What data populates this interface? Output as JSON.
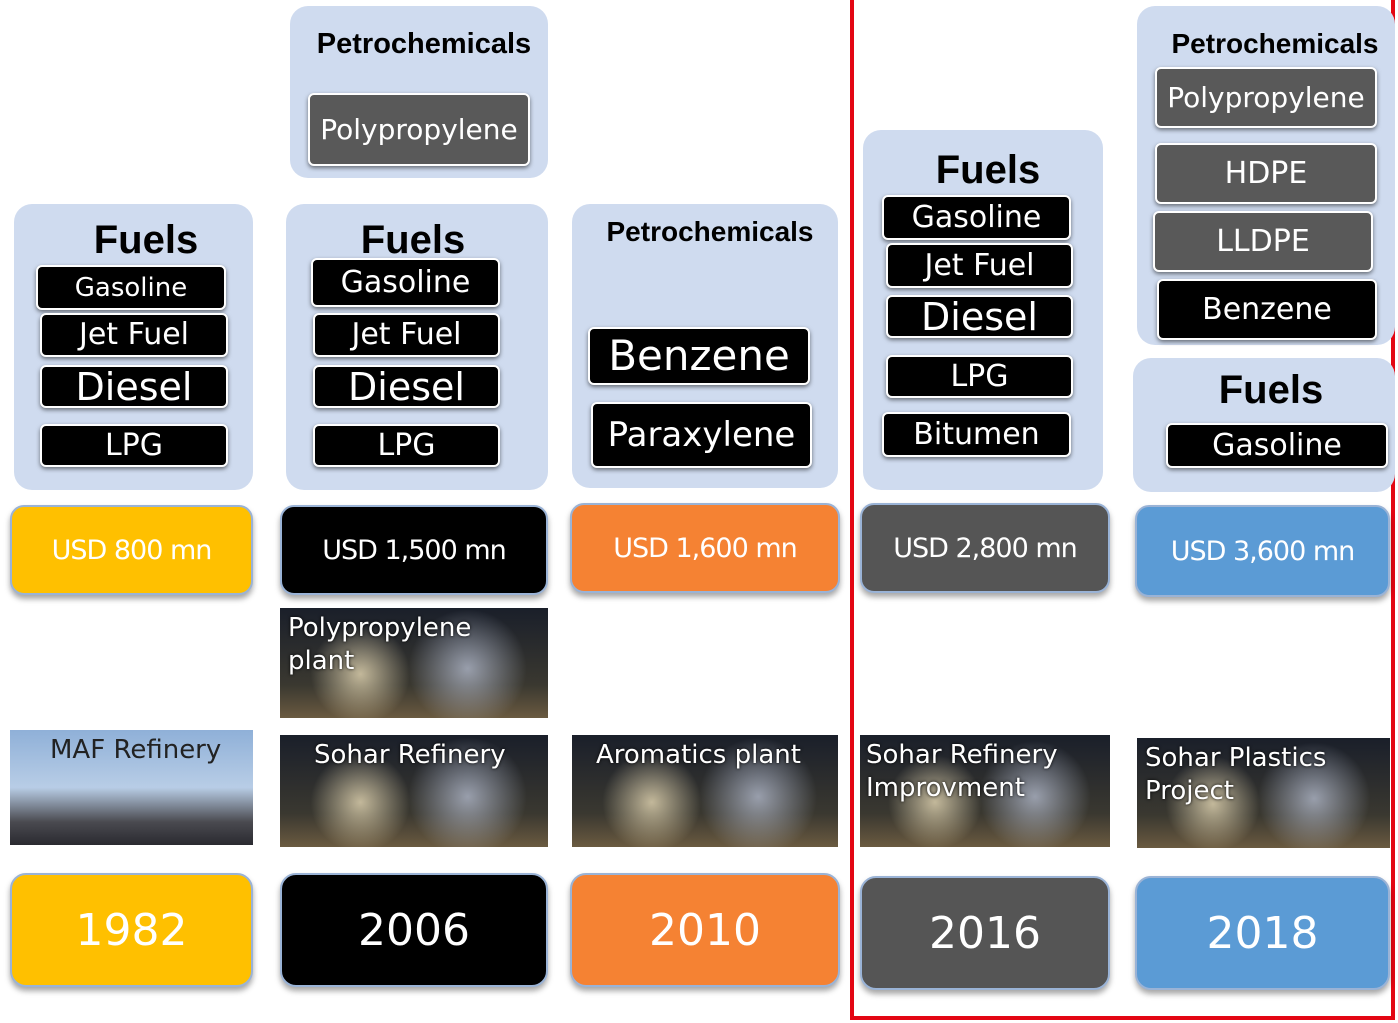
{
  "columns": [
    {
      "year": "1982",
      "investment": "USD 800 mn",
      "projects": [
        "MAF Refinery"
      ],
      "groups": [
        {
          "title": "Fuels",
          "items": [
            "Gasoline",
            "Jet Fuel",
            "Diesel",
            "LPG"
          ]
        }
      ]
    },
    {
      "year": "2006",
      "investment": "USD 1,500 mn",
      "projects": [
        "Polypropylene plant",
        "Sohar Refinery"
      ],
      "groups": [
        {
          "title": "Petrochemicals",
          "items": [
            "Polypropylene"
          ]
        },
        {
          "title": "Fuels",
          "items": [
            "Gasoline",
            "Jet Fuel",
            "Diesel",
            "LPG"
          ]
        }
      ]
    },
    {
      "year": "2010",
      "investment": "USD 1,600 mn",
      "projects": [
        "Aromatics plant"
      ],
      "groups": [
        {
          "title": "Petrochemicals",
          "items": [
            "Benzene",
            "Paraxylene"
          ]
        }
      ]
    },
    {
      "year": "2016",
      "investment": "USD 2,800 mn",
      "projects": [
        "Sohar Refinery Improvment"
      ],
      "groups": [
        {
          "title": "Fuels",
          "items": [
            "Gasoline",
            "Jet Fuel",
            "Diesel",
            "LPG",
            "Bitumen"
          ]
        }
      ]
    },
    {
      "year": "2018",
      "investment": "USD 3,600 mn",
      "projects": [
        "Sohar Plastics Project"
      ],
      "groups": [
        {
          "title": "Petrochemicals",
          "items": [
            "Polypropylene",
            "HDPE",
            "LLDPE",
            "Benzene"
          ]
        },
        {
          "title": "Fuels",
          "items": [
            "Gasoline"
          ]
        }
      ]
    }
  ]
}
